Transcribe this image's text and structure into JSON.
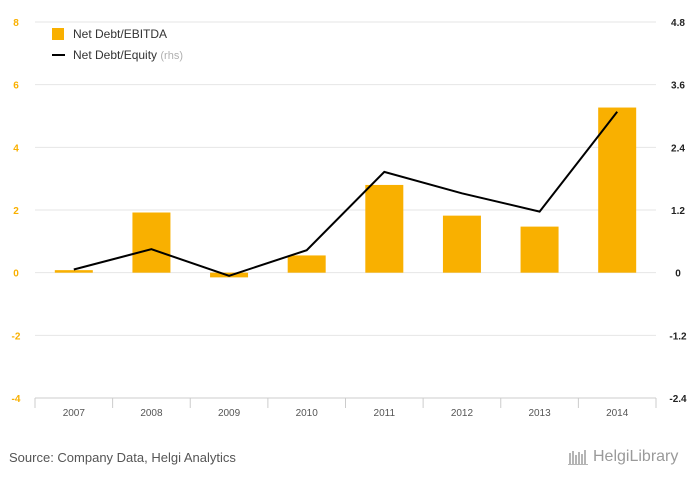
{
  "chart_data": {
    "type": "bar+line",
    "categories": [
      "2007",
      "2008",
      "2009",
      "2010",
      "2011",
      "2012",
      "2013",
      "2014"
    ],
    "series": [
      {
        "name": "Net Debt/EBITDA",
        "kind": "bar",
        "axis": "left",
        "color": "#F9B000",
        "values": [
          0.08,
          1.92,
          -0.15,
          0.55,
          2.8,
          1.82,
          1.47,
          5.27
        ]
      },
      {
        "name": "Net Debt/Equity",
        "kind": "line",
        "axis": "right",
        "color": "#000000",
        "values": [
          0.06,
          0.45,
          -0.06,
          0.43,
          1.93,
          1.52,
          1.17,
          3.08
        ]
      }
    ],
    "legend": {
      "bar_label": "Net Debt/EBITDA",
      "line_label": "Net Debt/Equity",
      "line_suffix": "(rhs)",
      "position": "top-left"
    },
    "left_axis": {
      "ylim": [
        -4,
        8
      ],
      "ticks": [
        8,
        6,
        4,
        2,
        0,
        -2,
        -4
      ],
      "tick_color": "#F9B000"
    },
    "right_axis": {
      "ylim": [
        -2.4,
        4.8
      ],
      "ticks": [
        "4.8",
        "3.6",
        "2.4",
        "1.2",
        "0",
        "-1.2",
        "-2.4"
      ]
    },
    "grid": true
  },
  "footer": {
    "source": "Source: Company Data, Helgi Analytics",
    "logo_text": "HelgiLibrary"
  }
}
